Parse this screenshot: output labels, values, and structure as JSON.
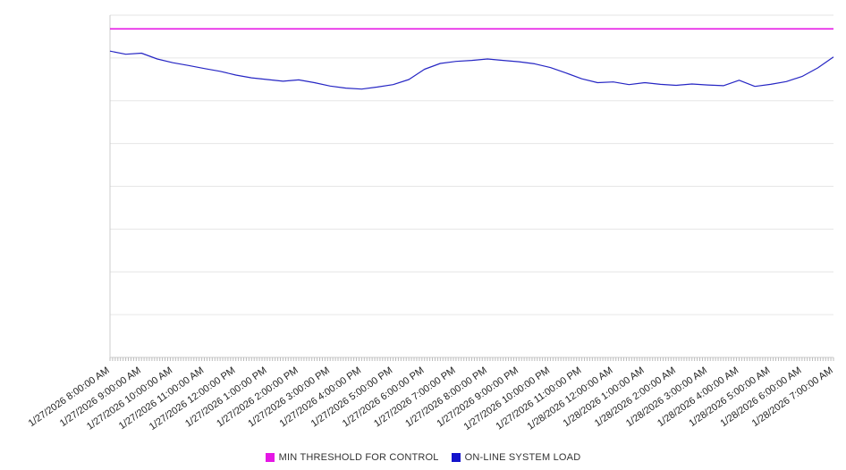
{
  "chart_data": {
    "type": "line",
    "title": "",
    "xlabel": "",
    "ylabel": "",
    "grid": true,
    "legend_position": "bottom",
    "ylim": [
      0,
      100
    ],
    "y_gridline_step": 12.5,
    "y_tick_labels_visible": false,
    "x_total_hours": 23,
    "minor_tick_minutes": 5,
    "x_tick_labels": [
      "1/27/2026 8:00:00 AM",
      "1/27/2026 9:00:00 AM",
      "1/27/2026 10:00:00 AM",
      "1/27/2026 11:00:00 AM",
      "1/27/2026 12:00:00 PM",
      "1/27/2026 1:00:00 PM",
      "1/27/2026 2:00:00 PM",
      "1/27/2026 3:00:00 PM",
      "1/27/2026 4:00:00 PM",
      "1/27/2026 5:00:00 PM",
      "1/27/2026 6:00:00 PM",
      "1/27/2026 7:00:00 PM",
      "1/27/2026 8:00:00 PM",
      "1/27/2026 9:00:00 PM",
      "1/27/2026 10:00:00 PM",
      "1/27/2026 11:00:00 PM",
      "1/28/2026 12:00:00 AM",
      "1/28/2026 1:00:00 AM",
      "1/28/2026 2:00:00 AM",
      "1/28/2026 3:00:00 AM",
      "1/28/2026 4:00:00 AM",
      "1/28/2026 5:00:00 AM",
      "1/28/2026 6:00:00 AM",
      "1/28/2026 7:00:00 AM"
    ],
    "series": [
      {
        "name": "MIN THRESHOLD FOR CONTROL",
        "color": "#E517E5",
        "style": "constant",
        "value": 96
      },
      {
        "name": "ON-LINE SYSTEM LOAD",
        "color": "#2626C4",
        "style": "line",
        "sample_interval_minutes": 30,
        "values": [
          89.5,
          88.6,
          88.9,
          87.2,
          86.1,
          85.3,
          84.4,
          83.6,
          82.5,
          81.7,
          81.2,
          80.7,
          81.1,
          80.3,
          79.3,
          78.7,
          78.4,
          79.0,
          79.7,
          81.2,
          84.2,
          85.9,
          86.5,
          86.8,
          87.2,
          86.8,
          86.4,
          85.8,
          84.7,
          83.1,
          81.4,
          80.3,
          80.5,
          79.7,
          80.3,
          79.8,
          79.5,
          79.9,
          79.6,
          79.4,
          81.0,
          79.2,
          79.8,
          80.6,
          82.1,
          84.6,
          87.8
        ]
      }
    ]
  },
  "legend": {
    "items": [
      {
        "label": "MIN THRESHOLD FOR CONTROL",
        "color": "#E517E5"
      },
      {
        "label": "ON-LINE SYSTEM LOAD",
        "color": "#1414CC"
      }
    ]
  },
  "colors": {
    "gridline": "#e6e6e6",
    "axis": "#cccccc",
    "minor_tick": "#bbbbbb",
    "label_text": "#222222"
  }
}
